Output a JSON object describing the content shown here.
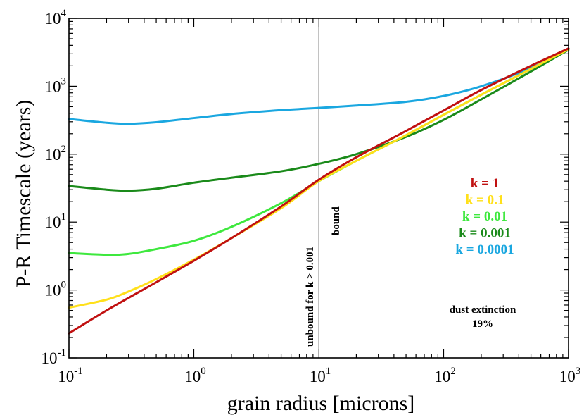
{
  "chart_data": {
    "type": "line",
    "title": "",
    "xlabel": "grain radius [microns]",
    "ylabel": "P-R Timescale (years)",
    "xscale": "log",
    "yscale": "log",
    "xlim": [
      0.1,
      1000
    ],
    "ylim": [
      0.1,
      10000
    ],
    "x_ticks": [
      {
        "value": 0.1,
        "base": "10",
        "exp": "-1"
      },
      {
        "value": 1,
        "base": "10",
        "exp": "0"
      },
      {
        "value": 10,
        "base": "10",
        "exp": "1"
      },
      {
        "value": 100,
        "base": "10",
        "exp": "2"
      },
      {
        "value": 1000,
        "base": "10",
        "exp": "3"
      }
    ],
    "y_ticks": [
      {
        "value": 0.1,
        "base": "10",
        "exp": "-1"
      },
      {
        "value": 1,
        "base": "10",
        "exp": "0"
      },
      {
        "value": 10,
        "base": "10",
        "exp": "1"
      },
      {
        "value": 100,
        "base": "10",
        "exp": "2"
      },
      {
        "value": 1000,
        "base": "10",
        "exp": "3"
      },
      {
        "value": 10000,
        "base": "10",
        "exp": "4"
      }
    ],
    "vertical_line": {
      "x": 10,
      "color": "#999999"
    },
    "annotations": {
      "left_of_line": "unbound for k > 0.001",
      "right_of_line": "bound",
      "extinction_line1": "dust extinction",
      "extinction_line2": "19%"
    },
    "legend_position": "right",
    "series": [
      {
        "name": "k = 0.0001",
        "color": "#1aa7e0",
        "x": [
          0.1,
          0.2,
          0.3,
          0.5,
          1,
          2,
          5,
          10,
          20,
          50,
          100,
          200,
          500,
          1000
        ],
        "y": [
          330,
          290,
          280,
          295,
          340,
          390,
          445,
          480,
          520,
          590,
          720,
          1000,
          1850,
          3500
        ]
      },
      {
        "name": "k = 0.001",
        "color": "#1a8a1a",
        "x": [
          0.1,
          0.2,
          0.3,
          0.5,
          1,
          2,
          5,
          10,
          20,
          50,
          100,
          200,
          500,
          1000
        ],
        "y": [
          34,
          30,
          29,
          31,
          38,
          45,
          56,
          72,
          100,
          180,
          320,
          640,
          1650,
          3450
        ]
      },
      {
        "name": "k = 0.01",
        "color": "#3ee83e",
        "x": [
          0.1,
          0.2,
          0.3,
          0.5,
          1,
          2,
          5,
          10,
          20,
          50,
          100,
          200,
          500,
          1000
        ],
        "y": [
          3.5,
          3.3,
          3.4,
          4.0,
          5.3,
          8.5,
          19,
          40,
          80,
          190,
          380,
          750,
          1800,
          3500
        ]
      },
      {
        "name": "k = 0.1",
        "color": "#ffe01a",
        "x": [
          0.1,
          0.2,
          0.3,
          0.5,
          1,
          2,
          5,
          10,
          20,
          50,
          100,
          200,
          500,
          1000
        ],
        "y": [
          0.55,
          0.72,
          0.95,
          1.45,
          2.8,
          5.8,
          16,
          40,
          80,
          190,
          380,
          750,
          1800,
          3500
        ]
      },
      {
        "name": "k = 1",
        "color": "#c01010",
        "x": [
          0.1,
          0.2,
          0.5,
          1,
          2,
          5,
          10,
          20,
          50,
          100,
          200,
          500,
          1000
        ],
        "y": [
          0.23,
          0.5,
          1.3,
          2.7,
          5.8,
          17,
          42,
          90,
          220,
          440,
          880,
          2000,
          3600
        ]
      }
    ],
    "legend_order": [
      "k = 1",
      "k = 0.1",
      "k = 0.01",
      "k = 0.001",
      "k = 0.0001"
    ]
  }
}
